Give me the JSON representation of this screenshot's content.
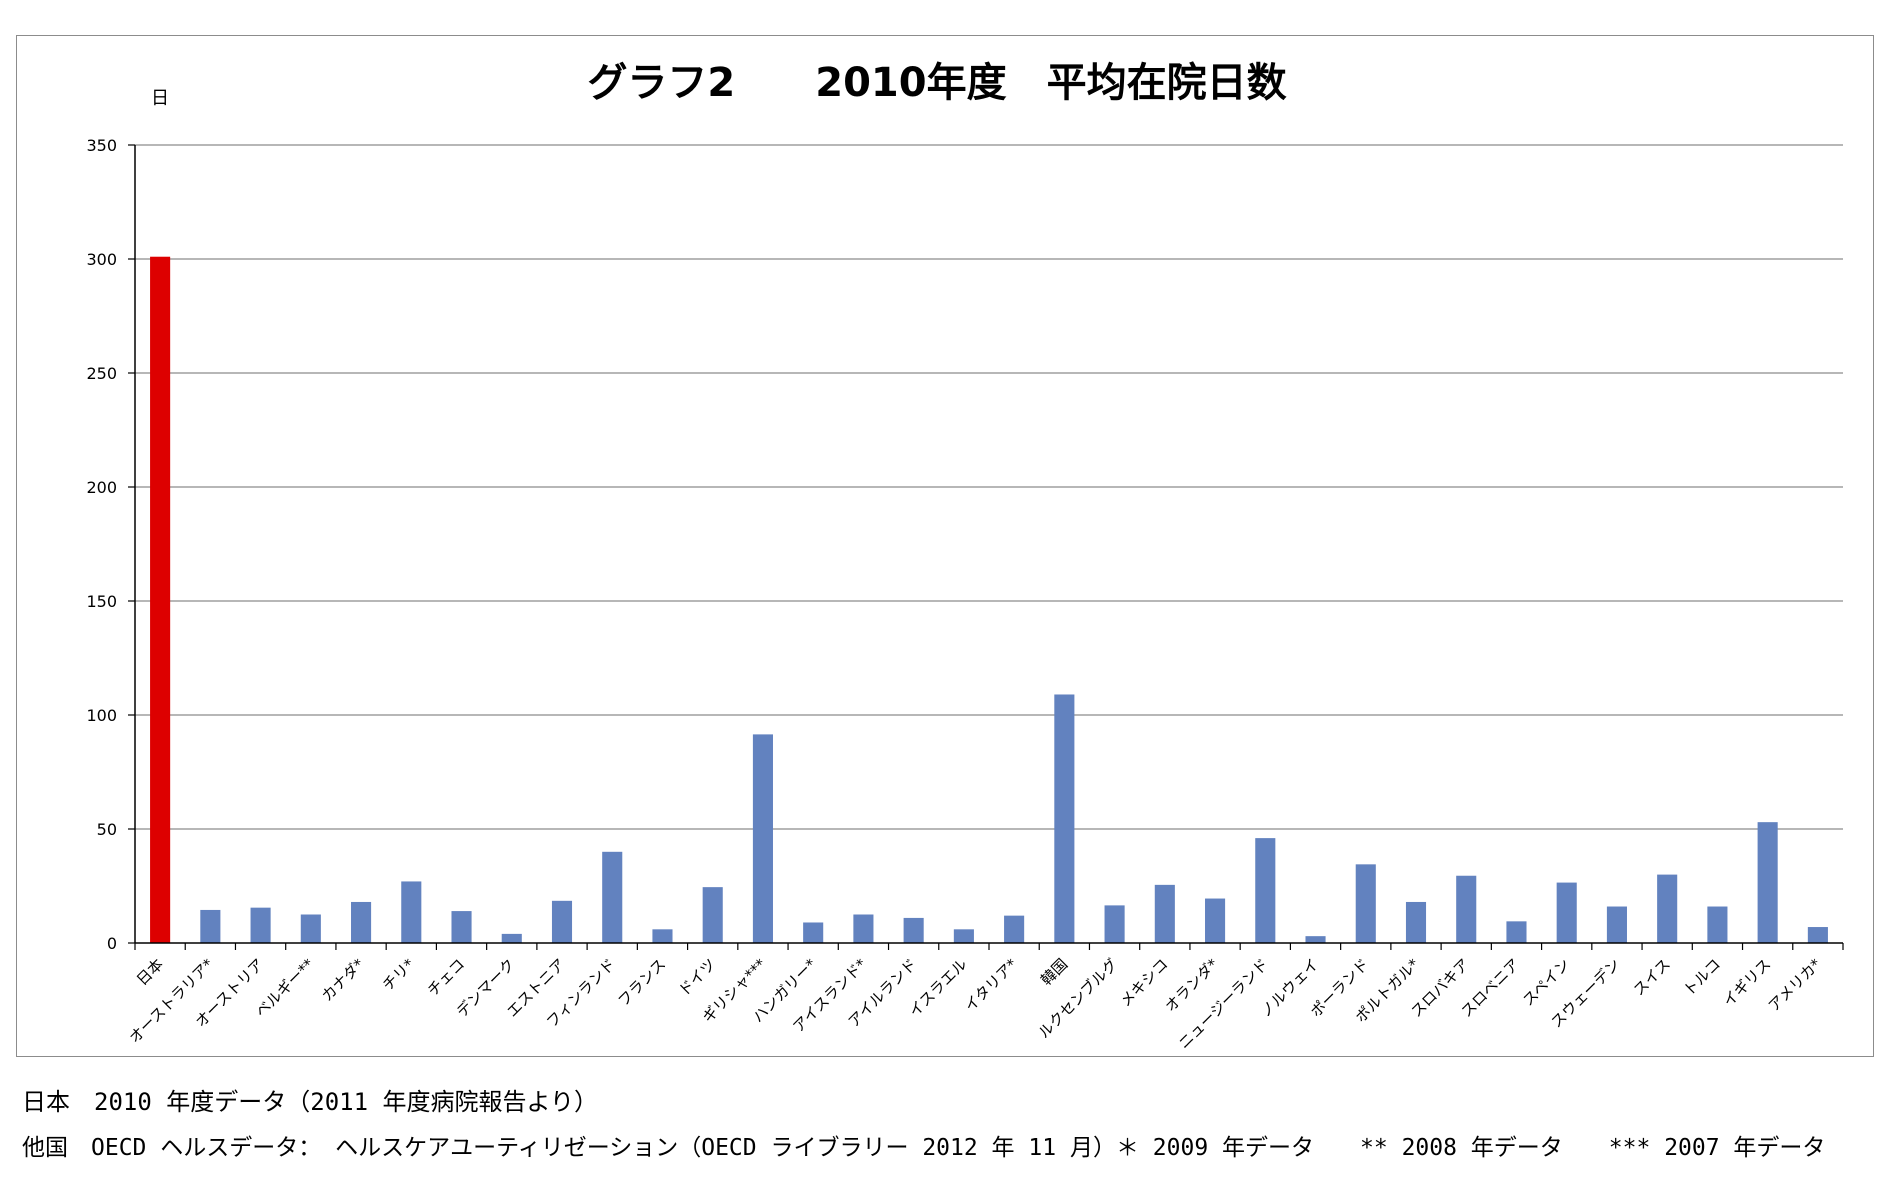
{
  "chart_data": {
    "type": "bar",
    "title": "グラフ2　　2010年度　平均在院日数",
    "ylabel": "日",
    "xlabel": "",
    "ylim": [
      0,
      350
    ],
    "yticks": [
      0,
      50,
      100,
      150,
      200,
      250,
      300,
      350
    ],
    "grid": true,
    "legend": "none",
    "categories": [
      "日本",
      "オーストラリア*",
      "オーストリア",
      "ベルギー**",
      "カナダ*",
      "チリ*",
      "チェコ",
      "デンマーク",
      "エストニア",
      "フィンランド",
      "フランス",
      "ドイツ",
      "ギリシャ***",
      "ハンガリー*",
      "アイスランド*",
      "アイルランド",
      "イスラエル",
      "イタリア*",
      "韓国",
      "ルクセンブルグ",
      "メキシコ",
      "オランダ*",
      "ニュージーランド",
      "ノルウェイ",
      "ポーランド",
      "ポルトガル*",
      "スロバキア",
      "スロベニア",
      "スペイン",
      "スウェーデン",
      "スイス",
      "トルコ",
      "イギリス",
      "アメリカ*"
    ],
    "values": [
      301,
      14.5,
      15.5,
      12.5,
      18,
      27,
      14,
      4,
      18.5,
      40,
      6,
      24.5,
      91.5,
      9,
      12.5,
      11,
      6,
      12,
      109,
      16.5,
      25.5,
      19.5,
      46,
      3,
      34.5,
      18,
      29.5,
      9.5,
      26.5,
      16,
      30,
      16,
      53,
      7
    ],
    "colors": {
      "highlight": "#dd0000",
      "default": "#6282bf",
      "grid": "#8c8c8c",
      "axis": "#000000"
    }
  },
  "notes": [
    "日本　2010 年度データ（2011 年度病院報告より）",
    "他国　OECD ヘルスデータ： ヘルスケアユーティリゼーション（OECD ライブラリー 2012 年 11 月）＊ 2009 年データ　　** 2008 年データ　　*** 2007 年データ"
  ]
}
